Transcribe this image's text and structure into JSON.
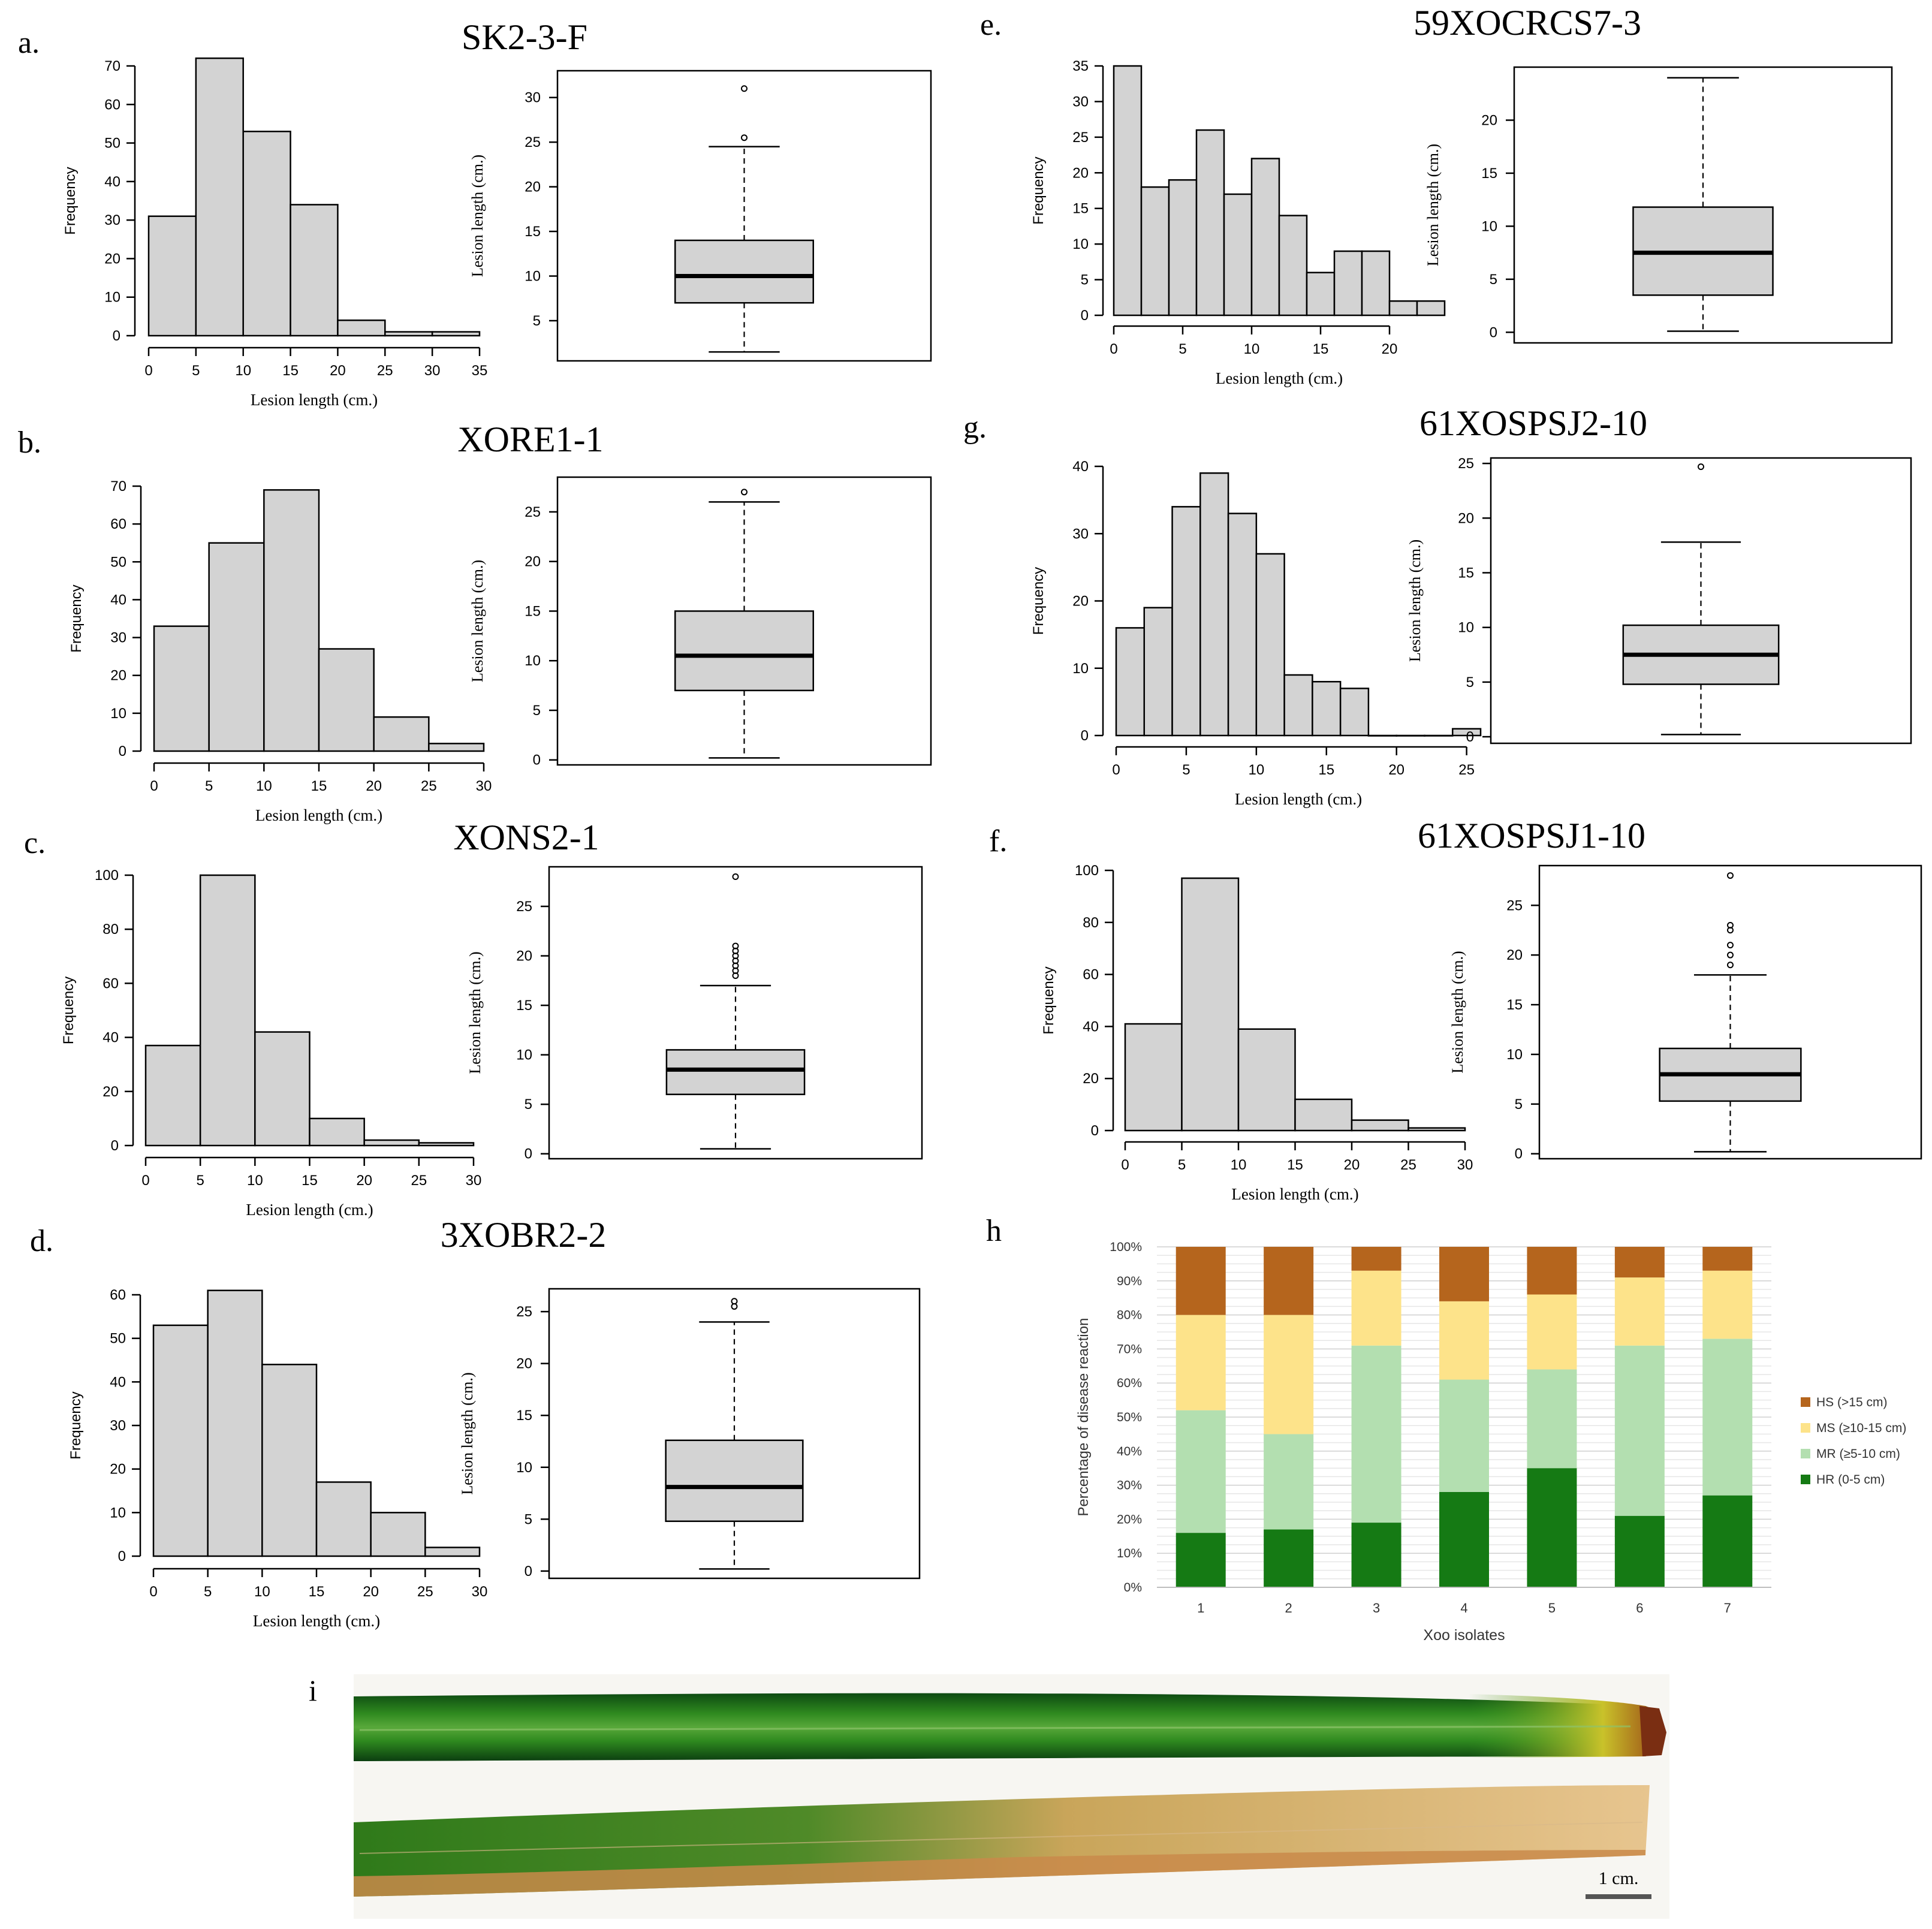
{
  "figure": {
    "panels": [
      "a.",
      "b.",
      "c.",
      "d.",
      "e.",
      "g.",
      "f.",
      "h",
      "i"
    ],
    "leaf_scale_label": "1 cm.",
    "leaf_photo_alt": "photograph of two rice leaves"
  },
  "colors": {
    "bar_fill": "#d3d3d3",
    "hs": "#b5651d",
    "ms": "#fde38a",
    "mr": "#b3dfb0",
    "hr": "#157a14"
  },
  "chart_data": [
    {
      "id": "a",
      "panel": "a.",
      "type": "bar",
      "title": "SK2-3-F",
      "histogram": {
        "bin_edges": [
          0,
          5,
          10,
          15,
          20,
          25,
          30,
          35
        ],
        "values": [
          31,
          72,
          53,
          34,
          4,
          1,
          1
        ],
        "xlabel": "Lesion length (cm.)",
        "ylabel": "Frequency",
        "xticks": [
          "0",
          "5",
          "10",
          "15",
          "20",
          "25",
          "30",
          "35"
        ],
        "xlim": [
          0,
          35
        ],
        "yticks": [
          "0",
          "10",
          "20",
          "30",
          "40",
          "50",
          "60",
          "70"
        ],
        "ylim": [
          0,
          70
        ]
      },
      "boxplot": {
        "ylabel": "Lesion length (cm.)",
        "ylim": [
          0.5,
          33
        ],
        "yticks": [
          "5",
          "10",
          "15",
          "20",
          "25",
          "30"
        ],
        "whisker_low": 1.5,
        "q1": 7,
        "median": 10,
        "q3": 14,
        "whisker_high": 24.5,
        "outliers": [
          25.5,
          31
        ]
      }
    },
    {
      "id": "b",
      "panel": "b.",
      "type": "bar",
      "title": "XORE1-1",
      "histogram": {
        "bin_edges": [
          0,
          5,
          10,
          15,
          20,
          25,
          30
        ],
        "values": [
          33,
          55,
          69,
          27,
          9,
          2
        ],
        "xlabel": "Lesion length (cm.)",
        "ylabel": "Frequency",
        "xticks": [
          "0",
          "5",
          "10",
          "15",
          "20",
          "25",
          "30"
        ],
        "xlim": [
          0,
          30
        ],
        "yticks": [
          "0",
          "10",
          "20",
          "30",
          "40",
          "50",
          "60",
          "70"
        ],
        "ylim": [
          0,
          70
        ]
      },
      "boxplot": {
        "ylabel": "Lesion length (cm.)",
        "ylim": [
          -0.5,
          28.5
        ],
        "yticks": [
          "0",
          "5",
          "10",
          "15",
          "20",
          "25"
        ],
        "whisker_low": 0.2,
        "q1": 7,
        "median": 10.5,
        "q3": 15,
        "whisker_high": 26,
        "outliers": [
          27
        ]
      }
    },
    {
      "id": "c",
      "panel": "c.",
      "type": "bar",
      "title": "XONS2-1",
      "histogram": {
        "bin_edges": [
          0,
          5,
          10,
          15,
          20,
          25,
          30
        ],
        "values": [
          37,
          100,
          42,
          10,
          2,
          1
        ],
        "xlabel": "Lesion length (cm.)",
        "ylabel": "Frequency",
        "xticks": [
          "0",
          "5",
          "10",
          "15",
          "20",
          "25",
          "30"
        ],
        "xlim": [
          0,
          30
        ],
        "yticks": [
          "0",
          "20",
          "40",
          "60",
          "80",
          "100"
        ],
        "ylim": [
          0,
          100
        ]
      },
      "boxplot": {
        "ylabel": "Lesion length (cm.)",
        "ylim": [
          -0.5,
          29
        ],
        "yticks": [
          "0",
          "5",
          "10",
          "15",
          "20",
          "25"
        ],
        "whisker_low": 0.5,
        "q1": 6,
        "median": 8.5,
        "q3": 10.5,
        "whisker_high": 17,
        "outliers": [
          18,
          18.5,
          19,
          19.5,
          20,
          20.5,
          21,
          28
        ]
      }
    },
    {
      "id": "d",
      "panel": "d.",
      "type": "bar",
      "title": "3XOBR2-2",
      "histogram": {
        "bin_edges": [
          0,
          5,
          10,
          15,
          20,
          25,
          30
        ],
        "values": [
          53,
          61,
          44,
          17,
          10,
          2
        ],
        "xlabel": "Lesion length (cm.)",
        "ylabel": "Frequency",
        "xticks": [
          "0",
          "5",
          "10",
          "15",
          "20",
          "25",
          "30"
        ],
        "xlim": [
          0,
          30
        ],
        "yticks": [
          "0",
          "10",
          "20",
          "30",
          "40",
          "50",
          "60"
        ],
        "ylim": [
          0,
          60
        ]
      },
      "boxplot": {
        "ylabel": "Lesion length (cm.)",
        "ylim": [
          -0.7,
          27.2
        ],
        "yticks": [
          "0",
          "5",
          "10",
          "15",
          "20",
          "25"
        ],
        "whisker_low": 0.2,
        "q1": 4.8,
        "median": 8.1,
        "q3": 12.6,
        "whisker_high": 24,
        "outliers": [
          25.5,
          26
        ]
      }
    },
    {
      "id": "e",
      "panel": "e.",
      "type": "bar",
      "title": "59XOCRCS7-3",
      "histogram": {
        "bin_edges": [
          0,
          2,
          4,
          6,
          8,
          10,
          12,
          14,
          16,
          18,
          20,
          22,
          24
        ],
        "values": [
          35,
          18,
          19,
          26,
          17,
          22,
          14,
          6,
          9,
          9,
          2,
          2
        ],
        "xlabel": "Lesion length (cm.)",
        "ylabel": "Frequency",
        "xticks": [
          "0",
          "5",
          "10",
          "15",
          "20"
        ],
        "xlim": [
          0,
          24
        ],
        "yticks": [
          "0",
          "5",
          "10",
          "15",
          "20",
          "25",
          "30",
          "35"
        ],
        "ylim": [
          0,
          35
        ]
      },
      "boxplot": {
        "ylabel": "Lesion length (cm.)",
        "ylim": [
          -1,
          25
        ],
        "yticks": [
          "0",
          "5",
          "10",
          "15",
          "20"
        ],
        "whisker_low": 0.1,
        "q1": 3.5,
        "median": 7.5,
        "q3": 11.8,
        "whisker_high": 24,
        "outliers": []
      }
    },
    {
      "id": "g",
      "panel": "g.",
      "type": "bar",
      "title": "61XOSPSJ2-10",
      "histogram": {
        "bin_edges": [
          0,
          2,
          4,
          6,
          8,
          10,
          12,
          14,
          16,
          18,
          20,
          22,
          24,
          26
        ],
        "values": [
          16,
          19,
          34,
          39,
          33,
          27,
          9,
          8,
          7,
          0,
          0,
          0,
          1
        ],
        "xlabel": "Lesion length (cm.)",
        "ylabel": "Frequency",
        "xticks": [
          "0",
          "5",
          "10",
          "15",
          "20",
          "25"
        ],
        "xlim": [
          0,
          26
        ],
        "yticks": [
          "0",
          "10",
          "20",
          "30",
          "40"
        ],
        "ylim": [
          0,
          40
        ]
      },
      "boxplot": {
        "ylabel": "Lesion length (cm.)",
        "ylim": [
          -0.6,
          25.5
        ],
        "yticks": [
          "0",
          "5",
          "10",
          "15",
          "20",
          "25"
        ],
        "whisker_low": 0.2,
        "q1": 4.8,
        "median": 7.5,
        "q3": 10.2,
        "whisker_high": 17.8,
        "outliers": [
          24.7
        ]
      }
    },
    {
      "id": "f",
      "panel": "f.",
      "type": "bar",
      "title": "61XOSPSJ1-10",
      "histogram": {
        "bin_edges": [
          0,
          5,
          10,
          15,
          20,
          25,
          30
        ],
        "values": [
          41,
          97,
          39,
          12,
          4,
          1
        ],
        "xlabel": "Lesion length (cm.)",
        "ylabel": "Frequency",
        "xticks": [
          "0",
          "5",
          "10",
          "15",
          "20",
          "25",
          "30"
        ],
        "xlim": [
          0,
          30
        ],
        "yticks": [
          "0",
          "20",
          "40",
          "60",
          "80",
          "100"
        ],
        "ylim": [
          0,
          100
        ]
      },
      "boxplot": {
        "ylabel": "Lesion length (cm.)",
        "ylim": [
          -0.5,
          29
        ],
        "yticks": [
          "0",
          "5",
          "10",
          "15",
          "20",
          "25"
        ],
        "whisker_low": 0.2,
        "q1": 5.3,
        "median": 8,
        "q3": 10.6,
        "whisker_high": 18,
        "outliers": [
          19,
          20,
          21,
          22.5,
          23,
          28
        ]
      }
    },
    {
      "id": "h",
      "panel": "h",
      "type": "bar",
      "stacked": true,
      "categories": [
        "1",
        "2",
        "3",
        "4",
        "5",
        "6",
        "7"
      ],
      "series": [
        {
          "name": "HR (0-5 cm)",
          "values": [
            16,
            17,
            19,
            28,
            35,
            21,
            27
          ]
        },
        {
          "name": "MR (≥5-10 cm)",
          "values": [
            36,
            28,
            52,
            33,
            29,
            50,
            46
          ]
        },
        {
          "name": "MS (≥10-15 cm)",
          "values": [
            28,
            35,
            22,
            23,
            22,
            20,
            20
          ]
        },
        {
          "name": "HS (>15 cm)",
          "values": [
            20,
            20,
            7,
            16,
            14,
            9,
            7
          ]
        }
      ],
      "xlabel": "Xoo isolates",
      "ylabel": "Percentage of disease reaction",
      "yticks": [
        "0%",
        "10%",
        "20%",
        "30%",
        "40%",
        "50%",
        "60%",
        "70%",
        "80%",
        "90%",
        "100%"
      ],
      "ylim": [
        0,
        100
      ],
      "legend_position": "right"
    }
  ]
}
